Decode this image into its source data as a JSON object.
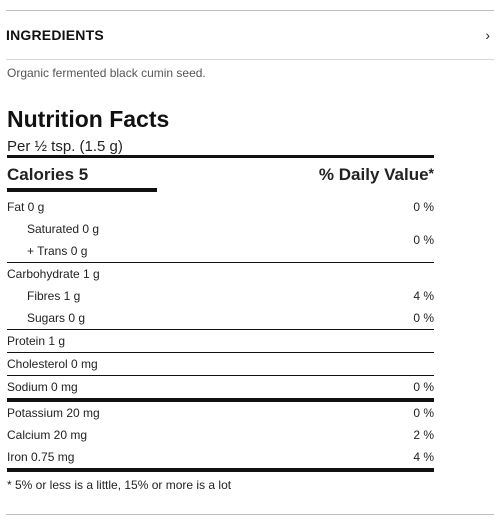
{
  "ingredients": {
    "title": "INGREDIENTS",
    "chevron": "›",
    "text": "Organic fermented black cumin seed."
  },
  "nutrition": {
    "title": "Nutrition Facts",
    "serving": "Per ½ tsp. (1.5 g)",
    "calories_label": "Calories 5",
    "daily_value_label": "% Daily Value",
    "daily_value_mark": "*",
    "fat": {
      "label": "Fat 0 g",
      "pct": "0 %"
    },
    "saturated": {
      "label": "Saturated 0 g"
    },
    "trans": {
      "label": "+ Trans 0 g"
    },
    "sat_trans_pct": "0 %",
    "carbohydrate": {
      "label": "Carbohydrate 1 g"
    },
    "fibres": {
      "label": "Fibres 1 g",
      "pct": "4 %"
    },
    "sugars": {
      "label": "Sugars 0 g",
      "pct": "0 %"
    },
    "protein": {
      "label": "Protein 1 g"
    },
    "cholesterol": {
      "label": "Cholesterol 0 mg"
    },
    "sodium": {
      "label": "Sodium 0 mg",
      "pct": "0 %"
    },
    "potassium": {
      "label": "Potassium 20 mg",
      "pct": "0 %"
    },
    "calcium": {
      "label": "Calcium 20 mg",
      "pct": "2 %"
    },
    "iron": {
      "label": "Iron 0.75 mg",
      "pct": "4 %"
    },
    "footnote": "* 5% or less is a little, 15% or more is a lot"
  }
}
